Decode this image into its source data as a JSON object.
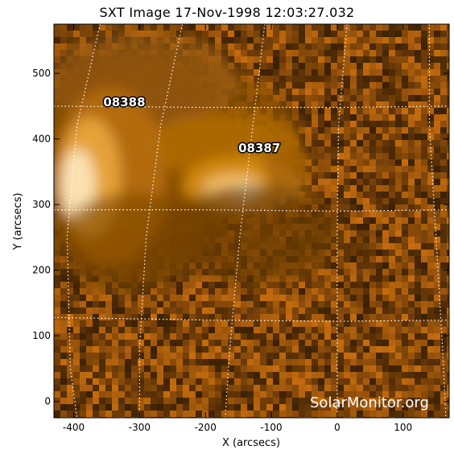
{
  "title": "SXT Image 17-Nov-1998 12:03:27.032",
  "watermark": "SolarMonitor.org",
  "colors": {
    "background": "#ffffff",
    "colormap_low": "#1e1002",
    "colormap_mid": "#d98a05",
    "colormap_high": "#fff8e8"
  },
  "chart_data": {
    "type": "heatmap",
    "xlabel": "X (arcsecs)",
    "ylabel": "Y (arcsecs)",
    "xlim": [
      -430,
      170
    ],
    "ylim": [
      -25,
      575
    ],
    "xticks": [
      -400,
      -300,
      -200,
      -100,
      0,
      100
    ],
    "yticks": [
      0,
      100,
      200,
      300,
      400,
      500
    ],
    "grid": "dotted heliographic grid",
    "regions": [
      {
        "label": "08388",
        "x": -355,
        "y": 450
      },
      {
        "label": "08387",
        "x": -150,
        "y": 380
      }
    ]
  }
}
